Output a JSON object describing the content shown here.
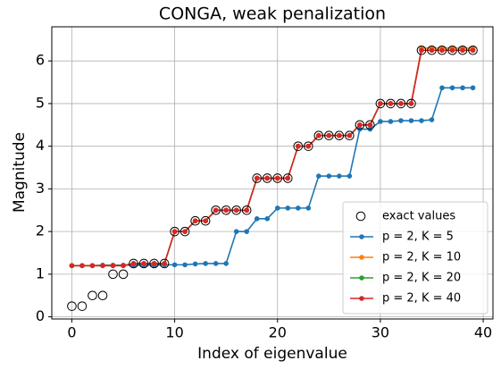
{
  "chart_data": {
    "type": "line",
    "title": "CONGA, weak penalization",
    "x_label": "Index of eigenvalue",
    "y_label": "Magnitude",
    "x": [
      0,
      1,
      2,
      3,
      4,
      5,
      6,
      7,
      8,
      9,
      10,
      11,
      12,
      13,
      14,
      15,
      16,
      17,
      18,
      19,
      20,
      21,
      22,
      23,
      24,
      25,
      26,
      27,
      28,
      29,
      30,
      31,
      32,
      33,
      34,
      35,
      36,
      37,
      38,
      39
    ],
    "exact": {
      "name": "exact values",
      "color": "#000000",
      "values": [
        0.25,
        0.25,
        0.5,
        0.5,
        1,
        1,
        1.25,
        1.25,
        1.25,
        1.25,
        2,
        2,
        2.25,
        2.25,
        2.5,
        2.5,
        2.5,
        2.5,
        3.25,
        3.25,
        3.25,
        3.25,
        4,
        4,
        4.25,
        4.25,
        4.25,
        4.25,
        4.5,
        4.5,
        5,
        5,
        5,
        5,
        6.25,
        6.25,
        6.25,
        6.25,
        6.25,
        6.25
      ]
    },
    "series": [
      {
        "name": "p = 2, K = 5",
        "color": "#1f77b4",
        "values": [
          1.2,
          1.2,
          1.2,
          1.21,
          1.21,
          1.21,
          1.21,
          1.21,
          1.21,
          1.22,
          1.22,
          1.22,
          1.24,
          1.25,
          1.25,
          1.25,
          2,
          2,
          2.3,
          2.3,
          2.55,
          2.55,
          2.55,
          2.55,
          3.3,
          3.3,
          3.3,
          3.3,
          4.4,
          4.4,
          4.58,
          4.58,
          4.6,
          4.6,
          4.6,
          4.62,
          5.37,
          5.37,
          5.37,
          5.37
        ]
      },
      {
        "name": "p = 2, K = 10",
        "color": "#ff7f0e",
        "values": [
          1.2,
          1.2,
          1.2,
          1.2,
          1.2,
          1.2,
          1.25,
          1.25,
          1.25,
          1.25,
          2,
          2,
          2.25,
          2.25,
          2.5,
          2.5,
          2.5,
          2.5,
          3.25,
          3.25,
          3.25,
          3.25,
          4,
          4,
          4.25,
          4.25,
          4.25,
          4.25,
          4.5,
          4.5,
          5,
          5,
          5,
          5,
          6.3,
          6.3,
          6.3,
          6.3,
          6.3,
          6.3
        ]
      },
      {
        "name": "p = 2, K = 20",
        "color": "#2ca02c",
        "values": [
          1.2,
          1.2,
          1.2,
          1.2,
          1.2,
          1.2,
          1.25,
          1.25,
          1.25,
          1.25,
          2,
          2,
          2.25,
          2.25,
          2.5,
          2.5,
          2.5,
          2.5,
          3.25,
          3.25,
          3.25,
          3.25,
          4,
          4,
          4.25,
          4.25,
          4.25,
          4.25,
          4.5,
          4.5,
          5,
          5,
          5,
          5,
          6.25,
          6.25,
          6.25,
          6.25,
          6.25,
          6.25
        ]
      },
      {
        "name": "p = 2, K = 40",
        "color": "#d62728",
        "values": [
          1.2,
          1.2,
          1.2,
          1.2,
          1.2,
          1.2,
          1.25,
          1.25,
          1.25,
          1.25,
          2,
          2,
          2.25,
          2.25,
          2.5,
          2.5,
          2.5,
          2.5,
          3.25,
          3.25,
          3.25,
          3.25,
          4,
          4,
          4.25,
          4.25,
          4.25,
          4.25,
          4.5,
          4.5,
          5,
          5,
          5,
          5,
          6.25,
          6.25,
          6.25,
          6.25,
          6.25,
          6.25
        ]
      }
    ],
    "xlim": [
      -1.95,
      40.95
    ],
    "xticks": [
      0,
      10,
      20,
      30,
      40
    ],
    "ylim": [
      -0.05,
      6.8
    ],
    "yticks": [
      0,
      1,
      2,
      3,
      4,
      5,
      6
    ],
    "grid": true,
    "legend": "lower right"
  }
}
